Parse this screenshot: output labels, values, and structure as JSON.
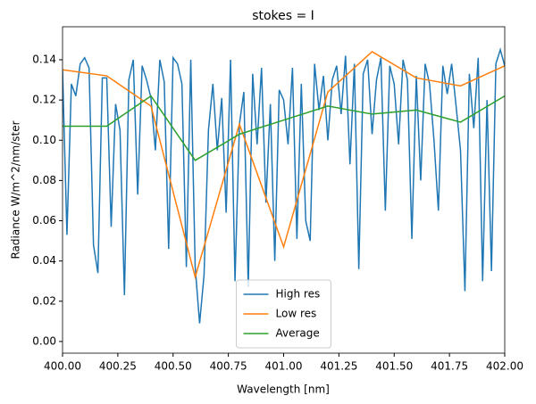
{
  "chart_data": {
    "type": "line",
    "title": "stokes = I",
    "x_label": "Wavelength [nm]",
    "y_label": "Radiance W/m^2/nm/ster",
    "xlim": [
      400,
      402
    ],
    "ylim": [
      -0.0058,
      0.1564
    ],
    "xticks": [
      {
        "value": 400,
        "label": "400.00"
      },
      {
        "value": 400.25,
        "label": "400.25"
      },
      {
        "value": 400.5,
        "label": "400.50"
      },
      {
        "value": 400.75,
        "label": "400.75"
      },
      {
        "value": 401,
        "label": "401.00"
      },
      {
        "value": 401.25,
        "label": "401.25"
      },
      {
        "value": 401.5,
        "label": "401.50"
      },
      {
        "value": 401.75,
        "label": "401.75"
      },
      {
        "value": 402,
        "label": "402.00"
      }
    ],
    "yticks": [
      {
        "value": 0,
        "label": "0.00"
      },
      {
        "value": 0.02,
        "label": "0.02"
      },
      {
        "value": 0.04,
        "label": "0.04"
      },
      {
        "value": 0.06,
        "label": "0.06"
      },
      {
        "value": 0.08,
        "label": "0.08"
      },
      {
        "value": 0.1,
        "label": "0.10"
      },
      {
        "value": 0.12,
        "label": "0.12"
      },
      {
        "value": 0.14,
        "label": "0.14"
      }
    ],
    "legend": "lower center",
    "series": [
      {
        "name": "High res",
        "color": "#1f77b4",
        "x": [
          400.0,
          400.02,
          400.04,
          400.06,
          400.08,
          400.1,
          400.12,
          400.14,
          400.16,
          400.18,
          400.2,
          400.22,
          400.24,
          400.26,
          400.28,
          400.3,
          400.32,
          400.34,
          400.36,
          400.38,
          400.4,
          400.42,
          400.44,
          400.46,
          400.48,
          400.5,
          400.52,
          400.54,
          400.56,
          400.58,
          400.6,
          400.62,
          400.64,
          400.66,
          400.68,
          400.7,
          400.72,
          400.74,
          400.76,
          400.78,
          400.8,
          400.82,
          400.84,
          400.86,
          400.88,
          400.9,
          400.92,
          400.94,
          400.96,
          400.98,
          401.0,
          401.02,
          401.04,
          401.06,
          401.08,
          401.1,
          401.12,
          401.14,
          401.16,
          401.18,
          401.2,
          401.22,
          401.24,
          401.26,
          401.28,
          401.3,
          401.32,
          401.34,
          401.36,
          401.38,
          401.4,
          401.42,
          401.44,
          401.46,
          401.48,
          401.5,
          401.52,
          401.54,
          401.56,
          401.58,
          401.6,
          401.62,
          401.64,
          401.66,
          401.68,
          401.7,
          401.72,
          401.74,
          401.76,
          401.78,
          401.8,
          401.82,
          401.84,
          401.86,
          401.88,
          401.9,
          401.92,
          401.94,
          401.96,
          401.98,
          402.0
        ],
        "values": [
          0.135,
          0.053,
          0.128,
          0.122,
          0.138,
          0.141,
          0.136,
          0.048,
          0.034,
          0.131,
          0.131,
          0.057,
          0.118,
          0.105,
          0.023,
          0.13,
          0.14,
          0.073,
          0.137,
          0.13,
          0.121,
          0.095,
          0.14,
          0.129,
          0.046,
          0.141,
          0.138,
          0.128,
          0.037,
          0.14,
          0.037,
          0.009,
          0.033,
          0.105,
          0.128,
          0.095,
          0.121,
          0.064,
          0.14,
          0.03,
          0.108,
          0.124,
          0.027,
          0.133,
          0.098,
          0.136,
          0.069,
          0.118,
          0.04,
          0.125,
          0.12,
          0.098,
          0.136,
          0.051,
          0.128,
          0.06,
          0.05,
          0.138,
          0.115,
          0.132,
          0.1,
          0.13,
          0.137,
          0.113,
          0.142,
          0.088,
          0.138,
          0.036,
          0.133,
          0.14,
          0.103,
          0.13,
          0.141,
          0.065,
          0.137,
          0.128,
          0.098,
          0.14,
          0.13,
          0.051,
          0.132,
          0.08,
          0.138,
          0.128,
          0.1,
          0.065,
          0.137,
          0.123,
          0.138,
          0.117,
          0.095,
          0.025,
          0.133,
          0.106,
          0.141,
          0.03,
          0.12,
          0.035,
          0.138,
          0.145,
          0.137
        ]
      },
      {
        "name": "Low res",
        "color": "#ff7f0e",
        "x": [
          400.0,
          400.2,
          400.4,
          400.6,
          400.8,
          401.0,
          401.2,
          401.4,
          401.6,
          401.8,
          402.0
        ],
        "values": [
          0.135,
          0.132,
          0.117,
          0.032,
          0.108,
          0.047,
          0.124,
          0.144,
          0.131,
          0.127,
          0.137
        ]
      },
      {
        "name": "Average",
        "color": "#2ca02c",
        "x": [
          400.0,
          400.2,
          400.4,
          400.6,
          400.8,
          401.0,
          401.2,
          401.4,
          401.6,
          401.8,
          402.0
        ],
        "values": [
          0.107,
          0.107,
          0.122,
          0.09,
          0.103,
          0.11,
          0.117,
          0.113,
          0.115,
          0.109,
          0.122
        ]
      }
    ]
  }
}
